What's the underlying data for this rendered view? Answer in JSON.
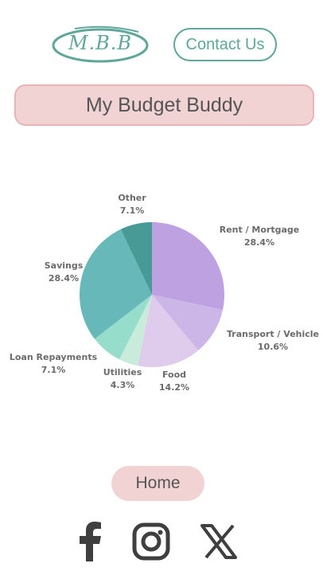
{
  "header": {
    "logo_text": "M.B.B",
    "contact_label": "Contact Us"
  },
  "page": {
    "title": "My Budget Buddy"
  },
  "chart_data": {
    "type": "pie",
    "slices": [
      {
        "label": "Rent / Mortgage",
        "percent_text": "28.4%",
        "value": 28.4,
        "color": "#bda1e1"
      },
      {
        "label": "Transport / Vehicle",
        "percent_text": "10.6%",
        "value": 10.6,
        "color": "#cbb6e7"
      },
      {
        "label": "Food",
        "percent_text": "14.2%",
        "value": 14.2,
        "color": "#dfcbec"
      },
      {
        "label": "Utilities",
        "percent_text": "4.3%",
        "value": 4.3,
        "color": "#c8ecd9"
      },
      {
        "label": "Loan Repayments",
        "percent_text": "7.1%",
        "value": 7.1,
        "color": "#96ddcc"
      },
      {
        "label": "Savings",
        "percent_text": "28.4%",
        "value": 28.4,
        "color": "#66b9b8"
      },
      {
        "label": "Other",
        "percent_text": "7.1%",
        "value": 7.1,
        "color": "#479a96"
      }
    ]
  },
  "footer": {
    "home_label": "Home",
    "social_icons": [
      "facebook-icon",
      "instagram-icon",
      "x-icon"
    ]
  }
}
